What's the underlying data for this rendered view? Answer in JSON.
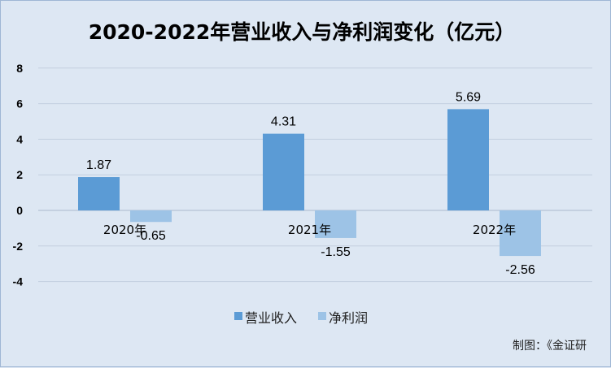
{
  "chart_data": {
    "type": "bar",
    "title": "2020-2022年营业收入与净利润变化（亿元）",
    "categories": [
      "2020年",
      "2021年",
      "2022年"
    ],
    "series": [
      {
        "name": "营业收入",
        "values": [
          1.87,
          4.31,
          5.69
        ],
        "color": "#5b9bd5"
      },
      {
        "name": "净利润",
        "values": [
          -0.65,
          -1.55,
          -2.56
        ],
        "color": "#9dc3e6"
      }
    ],
    "data_labels": [
      [
        "1.87",
        "4.31",
        "5.69"
      ],
      [
        "-0.65",
        "-1.55",
        "-2.56"
      ]
    ],
    "ylim": [
      -4,
      8
    ],
    "yticks": [
      "8",
      "6",
      "4",
      "2",
      "0",
      "-2",
      "-4"
    ],
    "ytick_values": [
      8,
      6,
      4,
      2,
      0,
      -2,
      -4
    ],
    "grid": true,
    "legend_position": "bottom",
    "xlabel": "",
    "ylabel": ""
  },
  "credit": "制图：《金证研"
}
